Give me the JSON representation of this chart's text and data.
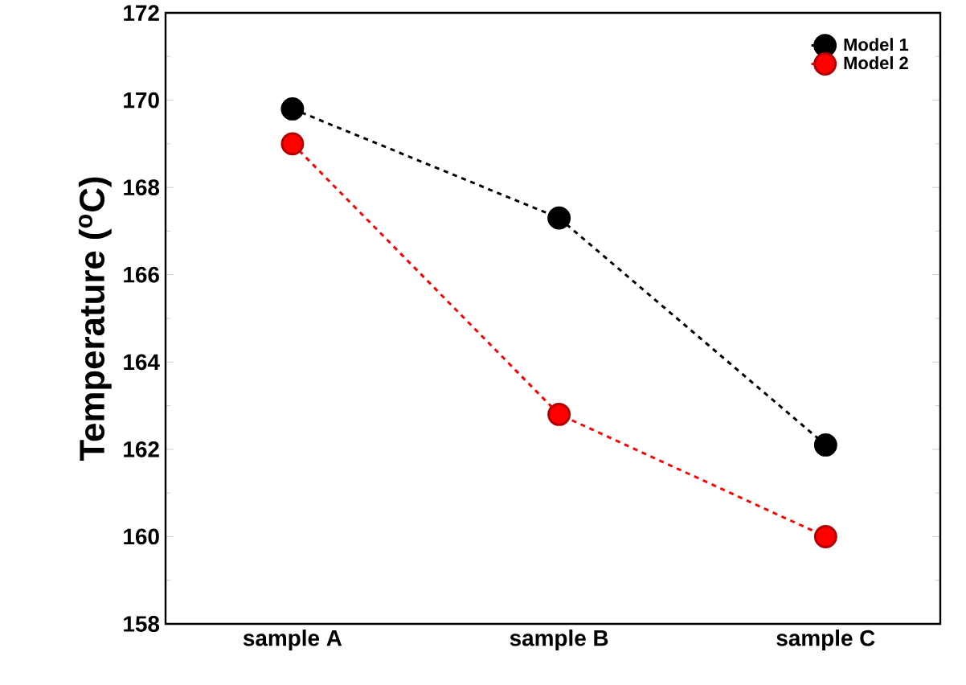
{
  "chart_data": {
    "type": "line",
    "ylabel": "Temperature ($^{o}$C)",
    "categories": [
      "sample A",
      "sample B",
      "sample C"
    ],
    "series": [
      {
        "name": "Model 1",
        "color": "#000000",
        "values": [
          169.8,
          167.3,
          162.1
        ]
      },
      {
        "name": "Model 2",
        "color": "#ff0000",
        "values": [
          169.0,
          162.8,
          160.0
        ]
      }
    ],
    "ylim": [
      158,
      172
    ],
    "yticks": [
      158,
      160,
      162,
      164,
      166,
      168,
      170,
      172
    ],
    "legend": "top right",
    "marker": "circle",
    "line_style": "dashed",
    "grid": false
  }
}
